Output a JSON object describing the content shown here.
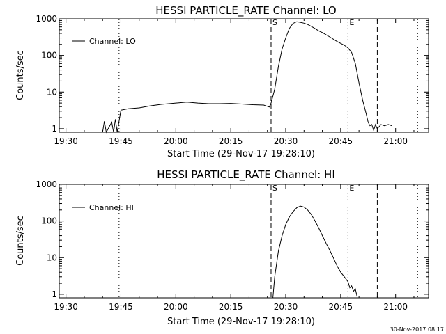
{
  "timestamp": "30-Nov-2017 08:17",
  "chart_data": [
    {
      "type": "line",
      "title": "HESSI PARTICLE_RATE Channel: LO",
      "xlabel": "Start Time (29-Nov-17 19:28:10)",
      "ylabel": "Counts/sec",
      "yscale": "log",
      "ylim": [
        0.8,
        1000
      ],
      "xlim": [
        "19:28:10",
        "21:09:00"
      ],
      "x_ticks": [
        "19:30",
        "19:45",
        "20:00",
        "20:15",
        "20:30",
        "20:45",
        "21:00"
      ],
      "y_ticks": [
        "1",
        "10",
        "100",
        "1000"
      ],
      "legend": {
        "position": "top-left",
        "entries": [
          "Channel: LO"
        ]
      },
      "markers": [
        {
          "time": "19:44:30",
          "style": "dotted",
          "label": ""
        },
        {
          "time": "20:26:00",
          "style": "dashed",
          "label": "S"
        },
        {
          "time": "20:47:00",
          "style": "dotted",
          "label": "E"
        },
        {
          "time": "20:55:00",
          "style": "dashed",
          "label": ""
        },
        {
          "time": "21:06:00",
          "style": "dotted",
          "label": ""
        }
      ],
      "series": [
        {
          "name": "Channel: LO",
          "x": [
            "19:40:00",
            "19:40:30",
            "19:41:00",
            "19:42:30",
            "19:43:00",
            "19:43:30",
            "19:44:00",
            "19:45:00",
            "19:47:00",
            "19:50:00",
            "19:53:00",
            "19:56:00",
            "20:00:00",
            "20:03:00",
            "20:06:00",
            "20:09:00",
            "20:12:00",
            "20:15:00",
            "20:18:00",
            "20:21:00",
            "20:24:00",
            "20:25:30",
            "20:26:00",
            "20:27:00",
            "20:28:00",
            "20:29:00",
            "20:30:00",
            "20:31:00",
            "20:32:00",
            "20:33:00",
            "20:34:00",
            "20:35:00",
            "20:36:00",
            "20:37:00",
            "20:38:00",
            "20:39:00",
            "20:40:00",
            "20:42:00",
            "20:44:00",
            "20:46:00",
            "20:47:00",
            "20:48:00",
            "20:49:00",
            "20:50:00",
            "20:51:00",
            "20:52:00",
            "20:52:30",
            "20:53:00",
            "20:53:30",
            "20:54:00",
            "20:54:30",
            "20:55:00",
            "20:56:00",
            "20:57:00",
            "20:58:00",
            "20:59:00"
          ],
          "values": [
            0.8,
            1.6,
            0.8,
            1.5,
            0.8,
            1.8,
            0.8,
            3.2,
            3.5,
            3.7,
            4.2,
            4.6,
            5.0,
            5.3,
            5.0,
            4.8,
            4.8,
            4.9,
            4.7,
            4.5,
            4.4,
            3.9,
            5.0,
            12,
            50,
            150,
            300,
            550,
            750,
            830,
            800,
            760,
            700,
            620,
            540,
            470,
            420,
            320,
            240,
            190,
            160,
            120,
            60,
            18,
            6,
            2.5,
            1.5,
            1.2,
            1.3,
            0.9,
            1.3,
            1.0,
            1.3,
            1.2,
            1.3,
            1.2
          ]
        }
      ]
    },
    {
      "type": "line",
      "title": "HESSI PARTICLE_RATE Channel: HI",
      "xlabel": "Start Time (29-Nov-17 19:28:10)",
      "ylabel": "Counts/sec",
      "yscale": "log",
      "ylim": [
        0.8,
        1000
      ],
      "xlim": [
        "19:28:10",
        "21:09:00"
      ],
      "x_ticks": [
        "19:30",
        "19:45",
        "20:00",
        "20:15",
        "20:30",
        "20:45",
        "21:00"
      ],
      "y_ticks": [
        "1",
        "10",
        "100",
        "1000"
      ],
      "legend": {
        "position": "top-left",
        "entries": [
          "Channel: HI"
        ]
      },
      "markers": [
        {
          "time": "19:44:30",
          "style": "dotted",
          "label": ""
        },
        {
          "time": "20:26:00",
          "style": "dashed",
          "label": "S"
        },
        {
          "time": "20:47:00",
          "style": "dotted",
          "label": "E"
        },
        {
          "time": "20:55:00",
          "style": "dashed",
          "label": ""
        },
        {
          "time": "21:06:00",
          "style": "dotted",
          "label": ""
        }
      ],
      "series": [
        {
          "name": "Channel: HI",
          "x": [
            "20:26:30",
            "20:27:00",
            "20:28:00",
            "20:29:00",
            "20:30:00",
            "20:31:00",
            "20:32:00",
            "20:33:00",
            "20:34:00",
            "20:35:00",
            "20:36:00",
            "20:37:00",
            "20:38:00",
            "20:39:00",
            "20:40:00",
            "20:41:00",
            "20:42:00",
            "20:43:00",
            "20:44:00",
            "20:45:00",
            "20:46:00",
            "20:47:00",
            "20:47:30",
            "20:48:00",
            "20:48:30",
            "20:49:00",
            "20:49:30"
          ],
          "values": [
            0.8,
            3,
            15,
            40,
            80,
            130,
            180,
            230,
            255,
            240,
            200,
            150,
            100,
            65,
            40,
            25,
            16,
            10,
            6,
            4,
            3,
            2.2,
            1.5,
            1.7,
            1.2,
            1.4,
            0.85
          ]
        }
      ]
    }
  ]
}
